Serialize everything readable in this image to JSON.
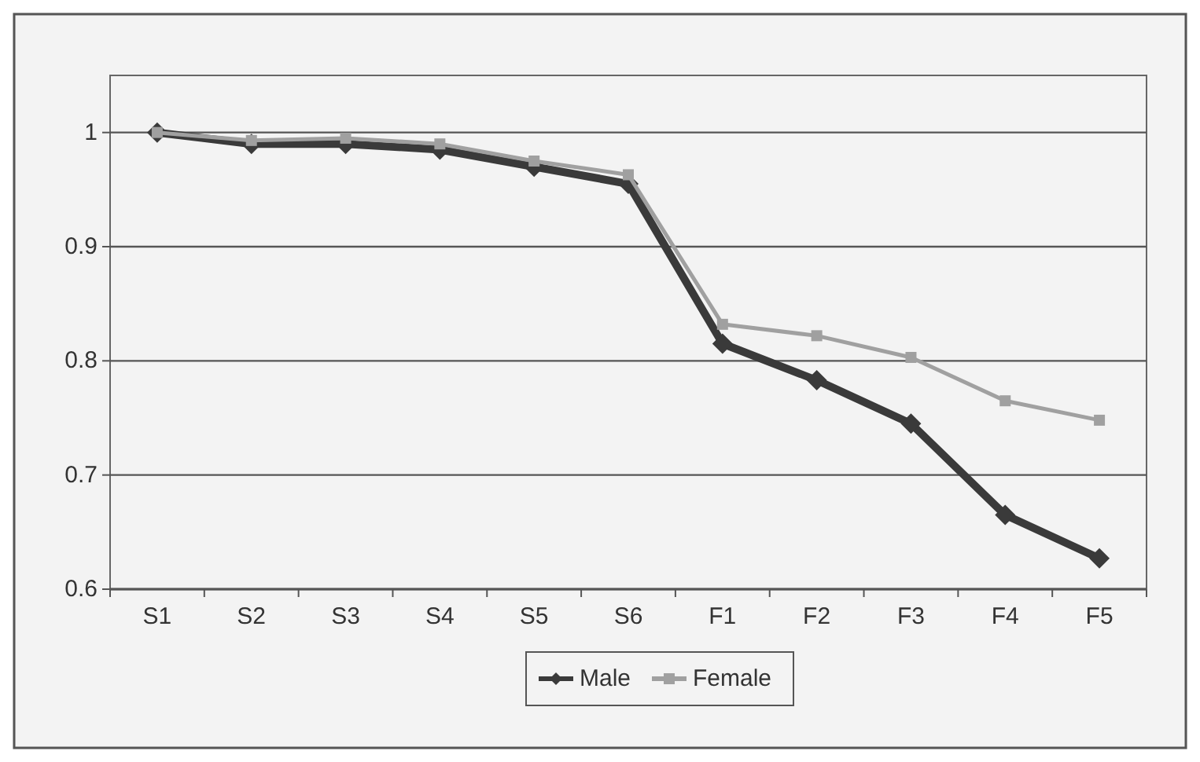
{
  "chart_data": {
    "type": "line",
    "categories": [
      "S1",
      "S2",
      "S3",
      "S4",
      "S5",
      "S6",
      "F1",
      "F2",
      "F3",
      "F4",
      "F5"
    ],
    "series": [
      {
        "name": "Male",
        "color": "#3a3a3a",
        "marker": "diamond",
        "values": [
          1.0,
          0.99,
          0.99,
          0.985,
          0.97,
          0.955,
          0.815,
          0.783,
          0.745,
          0.665,
          0.627
        ]
      },
      {
        "name": "Female",
        "color": "#a0a0a0",
        "marker": "square",
        "values": [
          1.0,
          0.993,
          0.995,
          0.99,
          0.975,
          0.963,
          0.832,
          0.822,
          0.803,
          0.765,
          0.748
        ]
      }
    ],
    "ylim": [
      0.6,
      1.05
    ],
    "yticks": [
      0.6,
      0.7,
      0.8,
      0.9,
      1
    ],
    "grid": "y",
    "legend": "bottom"
  }
}
